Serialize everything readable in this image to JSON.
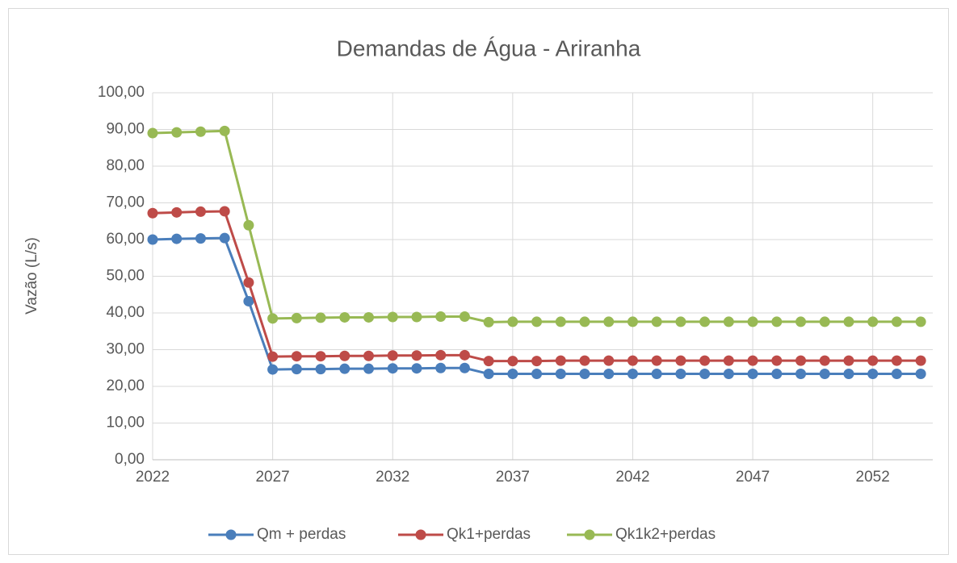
{
  "chart_data": {
    "type": "line",
    "title": "Demandas de Água - Ariranha",
    "y_label": "Vazão (L/s)",
    "x": [
      2022,
      2023,
      2024,
      2025,
      2026,
      2027,
      2028,
      2029,
      2030,
      2031,
      2032,
      2033,
      2034,
      2035,
      2036,
      2037,
      2038,
      2039,
      2040,
      2041,
      2042,
      2043,
      2044,
      2045,
      2046,
      2047,
      2048,
      2049,
      2050,
      2051,
      2052,
      2053,
      2054
    ],
    "series": [
      {
        "name": "Qm + perdas",
        "color": "#4a7ebb",
        "values": [
          60.0,
          60.2,
          60.3,
          60.4,
          43.2,
          24.6,
          24.7,
          24.7,
          24.8,
          24.8,
          24.9,
          24.9,
          25.0,
          25.0,
          23.4,
          23.4,
          23.4,
          23.4,
          23.4,
          23.4,
          23.4,
          23.4,
          23.4,
          23.4,
          23.4,
          23.4,
          23.4,
          23.4,
          23.4,
          23.4,
          23.4,
          23.4,
          23.4
        ]
      },
      {
        "name": "Qk1+perdas",
        "color": "#be4b48",
        "values": [
          67.2,
          67.4,
          67.6,
          67.7,
          48.3,
          28.1,
          28.2,
          28.2,
          28.3,
          28.3,
          28.4,
          28.4,
          28.5,
          28.5,
          26.9,
          26.9,
          26.9,
          27.0,
          27.0,
          27.0,
          27.0,
          27.0,
          27.0,
          27.0,
          27.0,
          27.0,
          27.0,
          27.0,
          27.0,
          27.0,
          27.0,
          27.0,
          27.0
        ]
      },
      {
        "name": "Qk1k2+perdas",
        "color": "#98b954",
        "values": [
          89.0,
          89.2,
          89.4,
          89.6,
          63.9,
          38.5,
          38.6,
          38.7,
          38.8,
          38.8,
          38.9,
          38.9,
          39.0,
          39.0,
          37.5,
          37.6,
          37.6,
          37.6,
          37.6,
          37.6,
          37.6,
          37.6,
          37.6,
          37.6,
          37.6,
          37.6,
          37.6,
          37.6,
          37.6,
          37.6,
          37.6,
          37.6,
          37.6
        ]
      }
    ],
    "xlim": [
      2022,
      2054.5
    ],
    "xticks": [
      2022,
      2027,
      2032,
      2037,
      2042,
      2047,
      2052
    ],
    "ylim": [
      0,
      100
    ],
    "yticks": [
      {
        "value": 0,
        "label": "0,00"
      },
      {
        "value": 10,
        "label": "10,00"
      },
      {
        "value": 20,
        "label": "20,00"
      },
      {
        "value": 30,
        "label": "30,00"
      },
      {
        "value": 40,
        "label": "40,00"
      },
      {
        "value": 50,
        "label": "50,00"
      },
      {
        "value": 60,
        "label": "60,00"
      },
      {
        "value": 70,
        "label": "70,00"
      },
      {
        "value": 80,
        "label": "80,00"
      },
      {
        "value": 90,
        "label": "90,00"
      },
      {
        "value": 100,
        "label": "100,00"
      }
    ],
    "grid": true,
    "legend": "bottom"
  }
}
